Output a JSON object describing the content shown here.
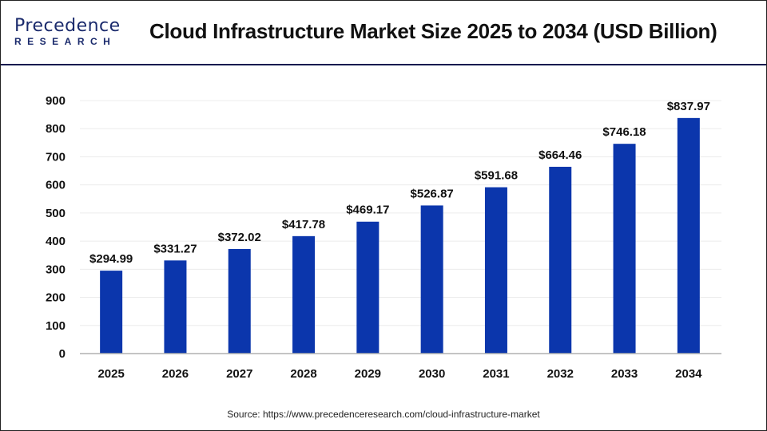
{
  "header": {
    "logo_text": "Precedence",
    "logo_sub": "RESEARCH",
    "title": "Cloud Infrastructure Market Size 2025 to 2034 (USD Billion)"
  },
  "source": "Source: https://www.precedenceresearch.com/cloud-infrastructure-market",
  "colors": {
    "bar": "#0b36ac",
    "header_line": "#0e1a4f"
  },
  "chart_data": {
    "type": "bar",
    "title": "Cloud Infrastructure Market Size 2025 to 2034 (USD Billion)",
    "categories": [
      "2025",
      "2026",
      "2027",
      "2028",
      "2029",
      "2030",
      "2031",
      "2032",
      "2033",
      "2034"
    ],
    "values": [
      294.99,
      331.27,
      372.02,
      417.78,
      469.17,
      526.87,
      591.68,
      664.46,
      746.18,
      837.97
    ],
    "data_labels": [
      "$294.99",
      "$331.27",
      "$372.02",
      "$417.78",
      "$469.17",
      "$526.87",
      "$591.68",
      "$664.46",
      "$746.18",
      "$837.97"
    ],
    "yticks": [
      0,
      100,
      200,
      300,
      400,
      500,
      600,
      700,
      800,
      900
    ],
    "ylim": [
      0,
      900
    ],
    "grid": true,
    "legend": "none"
  }
}
